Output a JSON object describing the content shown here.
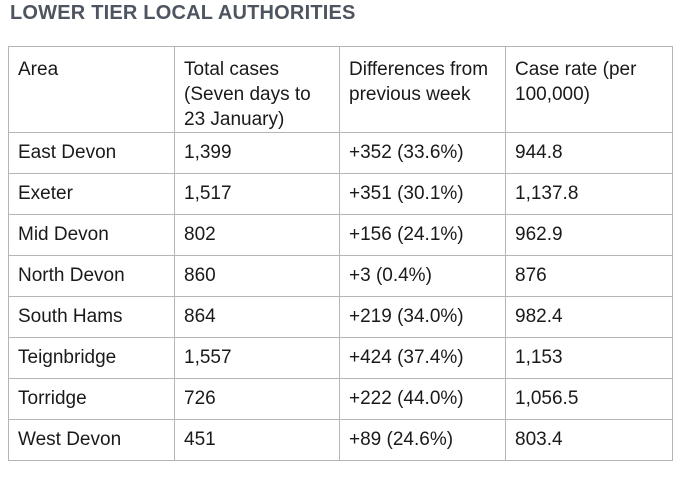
{
  "title": "LOWER TIER LOCAL AUTHORITIES",
  "columns": [
    "Area",
    "Total cases (Seven days to 23 January)",
    "Differences from previous week",
    "Case rate (per 100,000)"
  ],
  "rows": [
    [
      "East Devon",
      "1,399",
      "+352 (33.6%)",
      "944.8"
    ],
    [
      "Exeter",
      "1,517",
      "+351 (30.1%)",
      "1,137.8"
    ],
    [
      "Mid Devon",
      "802",
      "+156 (24.1%)",
      "962.9"
    ],
    [
      "North Devon",
      "860",
      "+3 (0.4%)",
      "876"
    ],
    [
      "South Hams",
      "864",
      "+219 (34.0%)",
      "982.4"
    ],
    [
      "Teignbridge",
      "1,557",
      "+424 (37.4%)",
      "1,153"
    ],
    [
      "Torridge",
      "726",
      "+222 (44.0%)",
      "1,056.5"
    ],
    [
      "West Devon",
      "451",
      "+89 (24.6%)",
      "803.4"
    ]
  ]
}
